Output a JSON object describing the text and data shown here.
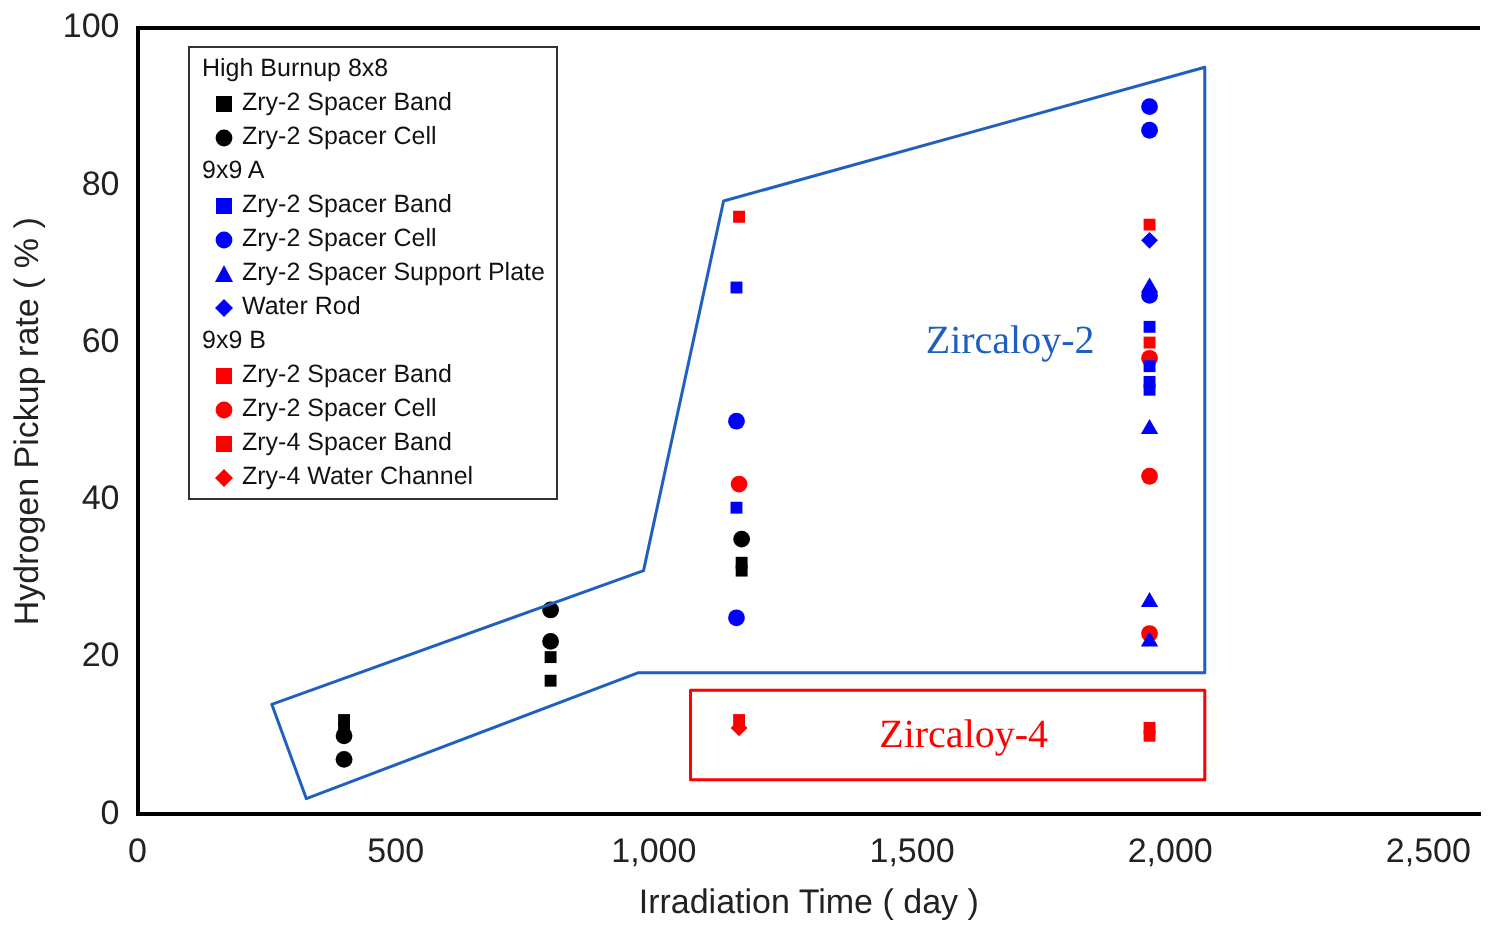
{
  "chart_data": {
    "type": "scatter",
    "xlabel": "Irradiation Time ( day )",
    "ylabel": "Hydrogen Pickup rate ( % )",
    "xlim": [
      0,
      2600
    ],
    "xticks": [
      {
        "value": 0,
        "label": "0"
      },
      {
        "value": 500,
        "label": "500"
      },
      {
        "value": 1000,
        "label": "1,000"
      },
      {
        "value": 1500,
        "label": "1,500"
      },
      {
        "value": 2000,
        "label": "2,000"
      },
      {
        "value": 2500,
        "label": "2,500"
      }
    ],
    "ylim": [
      0,
      100
    ],
    "yticks": [
      0,
      20,
      40,
      60,
      80,
      100
    ],
    "grid": false,
    "legend": "top left",
    "annotations": [
      "Zircaloy-2",
      "Zircaloy-4",
      "High Burnup 8x8",
      "9x9 A",
      "9x9 B"
    ],
    "series": [
      {
        "name": "Zry-2 Spacer Band",
        "color": "#000000",
        "marker": "square",
        "x": [
          400,
          400,
          800,
          800,
          1170,
          1170
        ],
        "values": [
          12,
          11,
          20,
          17,
          32,
          31
        ]
      },
      {
        "name": "Zry-2 Spacer Cell",
        "color": "#000000",
        "marker": "circle",
        "x": [
          400,
          400,
          800,
          800,
          1170
        ],
        "values": [
          10,
          7,
          26,
          22,
          35
        ]
      },
      {
        "name": "Zry-2 Spacer Band",
        "color": "#0000ff",
        "marker": "square",
        "x": [
          1160,
          1160,
          1960,
          1960,
          1960,
          1960
        ],
        "values": [
          67,
          39,
          62,
          57,
          55,
          54
        ]
      },
      {
        "name": "Zry-2 Spacer Cell",
        "color": "#0000ff",
        "marker": "circle",
        "x": [
          1160,
          1160,
          1960,
          1960,
          1960
        ],
        "values": [
          50,
          25,
          90,
          87,
          66
        ]
      },
      {
        "name": "Zry-2 Spacer Support Plate",
        "color": "#0000ff",
        "marker": "triangle",
        "x": [
          1960,
          1960,
          1960,
          1960
        ],
        "values": [
          67,
          49,
          27,
          22
        ]
      },
      {
        "name": "Water Rod",
        "color": "#0000ff",
        "marker": "diamond",
        "x": [
          1960
        ],
        "values": [
          73
        ]
      },
      {
        "name": "Zry-2 Spacer Band",
        "color": "#ff0000",
        "marker": "square",
        "x": [
          1165,
          1960,
          1960
        ],
        "values": [
          76,
          75,
          60
        ]
      },
      {
        "name": "Zry-2 Spacer Cell",
        "color": "#ff0000",
        "marker": "circle",
        "x": [
          1165,
          1960,
          1960,
          1960
        ],
        "values": [
          42,
          58,
          43,
          23
        ]
      },
      {
        "name": "Zry-4 Spacer Band",
        "color": "#ff0000",
        "marker": "square",
        "x": [
          1165,
          1960,
          1960
        ],
        "values": [
          12,
          11,
          10
        ]
      },
      {
        "name": "Zry-4 Water Channel",
        "color": "#ff0000",
        "marker": "diamond",
        "x": [
          1165
        ],
        "values": [
          11
        ]
      }
    ]
  }
}
